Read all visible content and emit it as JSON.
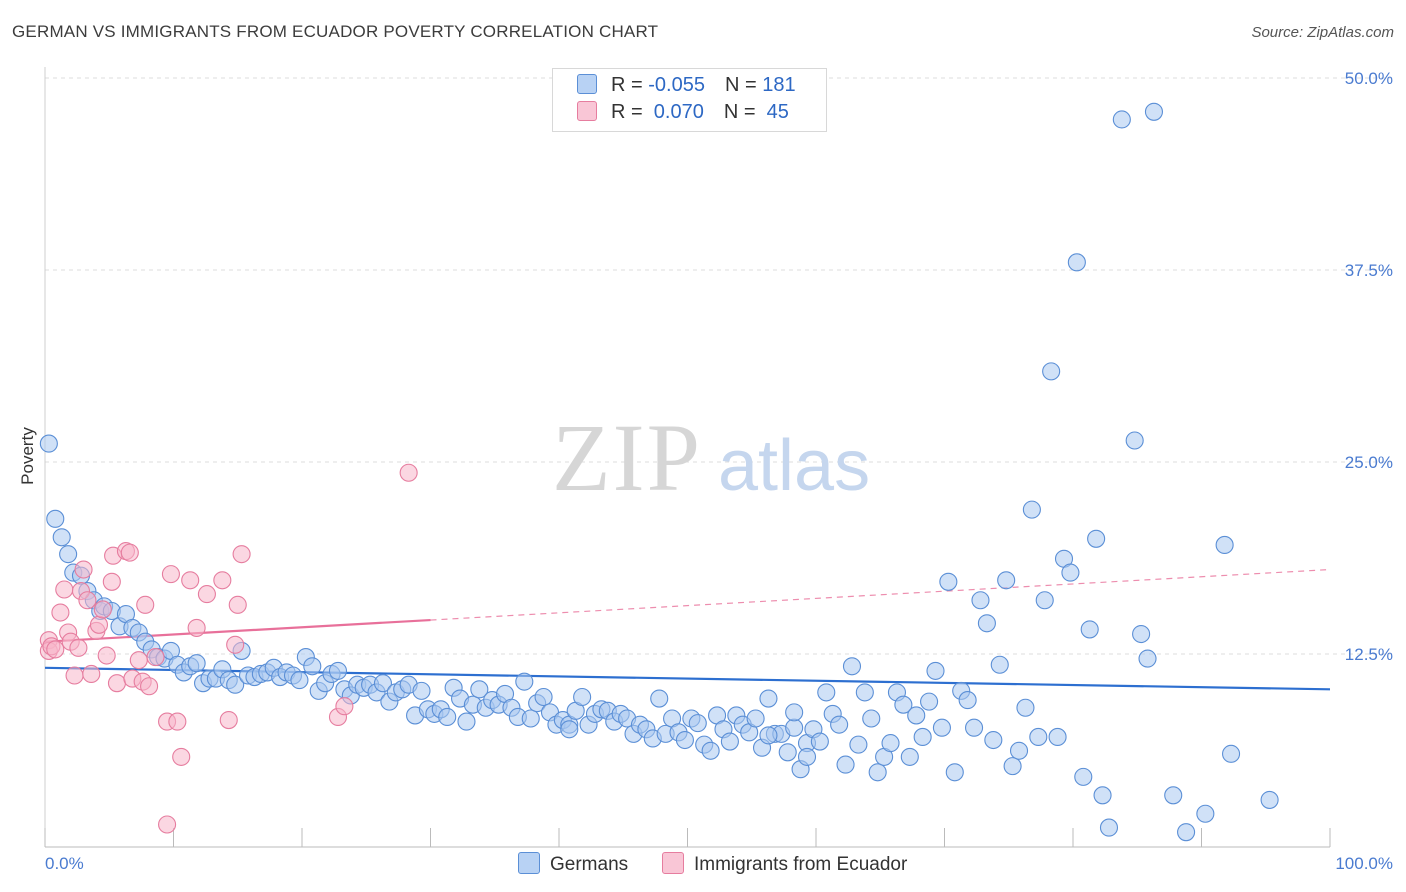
{
  "title": "GERMAN VS IMMIGRANTS FROM ECUADOR POVERTY CORRELATION CHART",
  "source": "Source: ZipAtlas.com",
  "watermark": {
    "zip": "ZIP",
    "atlas": "atlas"
  },
  "legend": {
    "rows": [
      {
        "r_label": "R = ",
        "r_value": "-0.055",
        "n_label": "N = ",
        "n_value": "181"
      },
      {
        "r_label": "R = ",
        "r_value": " 0.070",
        "n_label": "N = ",
        "n_value": " 45"
      }
    ]
  },
  "bottom_legend": {
    "germans": "Germans",
    "ecuador": "Immigrants from Ecuador"
  },
  "colors": {
    "german_fill": "#a9c8f0",
    "german_stroke": "#5b8fd6",
    "german_line": "#2d6fd0",
    "ecuador_fill": "#f7b6ca",
    "ecuador_stroke": "#e67d9f",
    "ecuador_line": "#e8709a",
    "tick_color": "#4a7bd0",
    "grid": "#dddddd"
  },
  "chart_data": {
    "type": "scatter",
    "title": "GERMAN VS IMMIGRANTS FROM ECUADOR POVERTY CORRELATION CHART",
    "xlabel": "",
    "ylabel": "Poverty",
    "xlim": [
      0,
      100
    ],
    "ylim": [
      0,
      50
    ],
    "x_ticks": [
      "0.0%",
      "100.0%"
    ],
    "y_ticks": [
      {
        "value": 12.5,
        "label": "12.5%"
      },
      {
        "value": 25.0,
        "label": "25.0%"
      },
      {
        "value": 37.5,
        "label": "37.5%"
      },
      {
        "value": 50.0,
        "label": "50.0%"
      }
    ],
    "grid": true,
    "legend_position": "top-center",
    "series": [
      {
        "name": "Germans",
        "r": -0.055,
        "n": 181,
        "trend": {
          "x": [
            0,
            100
          ],
          "y": [
            11.6,
            10.2
          ],
          "dashed_from": null
        },
        "points": [
          [
            0.3,
            26.2
          ],
          [
            0.8,
            21.3
          ],
          [
            1.3,
            20.1
          ],
          [
            1.8,
            19.0
          ],
          [
            2.2,
            17.8
          ],
          [
            2.8,
            17.6
          ],
          [
            3.3,
            16.6
          ],
          [
            3.8,
            16.0
          ],
          [
            4.3,
            15.3
          ],
          [
            4.6,
            15.6
          ],
          [
            5.2,
            15.3
          ],
          [
            5.8,
            14.3
          ],
          [
            6.3,
            15.1
          ],
          [
            6.8,
            14.2
          ],
          [
            7.3,
            13.9
          ],
          [
            7.8,
            13.3
          ],
          [
            8.3,
            12.8
          ],
          [
            8.8,
            12.3
          ],
          [
            9.3,
            12.2
          ],
          [
            9.8,
            12.7
          ],
          [
            10.3,
            11.8
          ],
          [
            10.8,
            11.3
          ],
          [
            11.3,
            11.7
          ],
          [
            11.8,
            11.9
          ],
          [
            12.3,
            10.6
          ],
          [
            12.8,
            10.9
          ],
          [
            13.3,
            10.9
          ],
          [
            13.8,
            11.5
          ],
          [
            14.3,
            10.8
          ],
          [
            14.8,
            10.5
          ],
          [
            15.3,
            12.7
          ],
          [
            15.8,
            11.1
          ],
          [
            16.3,
            11.0
          ],
          [
            16.8,
            11.2
          ],
          [
            17.3,
            11.3
          ],
          [
            17.8,
            11.6
          ],
          [
            18.3,
            11.0
          ],
          [
            18.8,
            11.3
          ],
          [
            19.3,
            11.1
          ],
          [
            19.8,
            10.8
          ],
          [
            20.3,
            12.3
          ],
          [
            20.8,
            11.7
          ],
          [
            21.3,
            10.1
          ],
          [
            21.8,
            10.6
          ],
          [
            22.3,
            11.2
          ],
          [
            22.8,
            11.4
          ],
          [
            23.3,
            10.2
          ],
          [
            23.8,
            9.8
          ],
          [
            24.3,
            10.5
          ],
          [
            24.8,
            10.3
          ],
          [
            25.3,
            10.5
          ],
          [
            25.8,
            10.0
          ],
          [
            26.3,
            10.6
          ],
          [
            26.8,
            9.4
          ],
          [
            27.3,
            10.0
          ],
          [
            27.8,
            10.2
          ],
          [
            28.3,
            10.5
          ],
          [
            28.8,
            8.5
          ],
          [
            29.3,
            10.1
          ],
          [
            29.8,
            8.9
          ],
          [
            30.3,
            8.6
          ],
          [
            30.8,
            8.9
          ],
          [
            31.3,
            8.4
          ],
          [
            31.8,
            10.3
          ],
          [
            32.3,
            9.6
          ],
          [
            32.8,
            8.1
          ],
          [
            33.3,
            9.2
          ],
          [
            33.8,
            10.2
          ],
          [
            34.3,
            9.0
          ],
          [
            34.8,
            9.5
          ],
          [
            35.3,
            9.2
          ],
          [
            35.8,
            9.9
          ],
          [
            36.3,
            9.0
          ],
          [
            36.8,
            8.4
          ],
          [
            37.3,
            10.7
          ],
          [
            37.8,
            8.3
          ],
          [
            38.3,
            9.3
          ],
          [
            38.8,
            9.7
          ],
          [
            39.3,
            8.7
          ],
          [
            39.8,
            7.9
          ],
          [
            40.3,
            8.2
          ],
          [
            40.8,
            7.9
          ],
          [
            41.3,
            8.8
          ],
          [
            41.8,
            9.7
          ],
          [
            42.3,
            7.9
          ],
          [
            42.8,
            8.6
          ],
          [
            43.3,
            8.9
          ],
          [
            43.8,
            8.8
          ],
          [
            44.3,
            8.1
          ],
          [
            44.8,
            8.6
          ],
          [
            45.3,
            8.3
          ],
          [
            45.8,
            7.3
          ],
          [
            46.3,
            7.9
          ],
          [
            46.8,
            7.6
          ],
          [
            47.3,
            7.0
          ],
          [
            47.8,
            9.6
          ],
          [
            48.3,
            7.3
          ],
          [
            48.8,
            8.3
          ],
          [
            49.3,
            7.4
          ],
          [
            49.8,
            6.9
          ],
          [
            50.3,
            8.3
          ],
          [
            50.8,
            8.0
          ],
          [
            51.3,
            6.6
          ],
          [
            51.8,
            6.2
          ],
          [
            52.3,
            8.5
          ],
          [
            52.8,
            7.6
          ],
          [
            53.3,
            6.8
          ],
          [
            53.8,
            8.5
          ],
          [
            54.3,
            7.9
          ],
          [
            54.8,
            7.4
          ],
          [
            55.3,
            8.3
          ],
          [
            55.8,
            6.4
          ],
          [
            56.3,
            9.6
          ],
          [
            56.8,
            7.3
          ],
          [
            57.3,
            7.3
          ],
          [
            57.8,
            6.1
          ],
          [
            58.3,
            7.7
          ],
          [
            58.8,
            5.0
          ],
          [
            59.3,
            6.7
          ],
          [
            59.8,
            7.6
          ],
          [
            60.3,
            6.8
          ],
          [
            60.8,
            10.0
          ],
          [
            61.3,
            8.6
          ],
          [
            61.8,
            7.9
          ],
          [
            62.3,
            5.3
          ],
          [
            62.8,
            11.7
          ],
          [
            63.3,
            6.6
          ],
          [
            63.8,
            10.0
          ],
          [
            64.3,
            8.3
          ],
          [
            64.8,
            4.8
          ],
          [
            65.3,
            5.8
          ],
          [
            65.8,
            6.7
          ],
          [
            66.3,
            10.0
          ],
          [
            66.8,
            9.2
          ],
          [
            67.3,
            5.8
          ],
          [
            67.8,
            8.5
          ],
          [
            68.3,
            7.1
          ],
          [
            68.8,
            9.4
          ],
          [
            69.3,
            11.4
          ],
          [
            69.8,
            7.7
          ],
          [
            70.3,
            17.2
          ],
          [
            70.8,
            4.8
          ],
          [
            71.3,
            10.1
          ],
          [
            71.8,
            9.5
          ],
          [
            72.3,
            7.7
          ],
          [
            72.8,
            16.0
          ],
          [
            73.3,
            14.5
          ],
          [
            73.8,
            6.9
          ],
          [
            74.3,
            11.8
          ],
          [
            74.8,
            17.3
          ],
          [
            75.3,
            5.2
          ],
          [
            75.8,
            6.2
          ],
          [
            76.3,
            9.0
          ],
          [
            76.8,
            21.9
          ],
          [
            77.3,
            7.1
          ],
          [
            77.8,
            16.0
          ],
          [
            78.3,
            30.9
          ],
          [
            78.8,
            7.1
          ],
          [
            79.3,
            18.7
          ],
          [
            79.8,
            17.8
          ],
          [
            80.3,
            38.0
          ],
          [
            80.8,
            4.5
          ],
          [
            81.3,
            14.1
          ],
          [
            81.8,
            20.0
          ],
          [
            82.3,
            3.3
          ],
          [
            82.8,
            1.2
          ],
          [
            83.8,
            47.3
          ],
          [
            84.8,
            26.4
          ],
          [
            85.3,
            13.8
          ],
          [
            85.8,
            12.2
          ],
          [
            86.3,
            47.8
          ],
          [
            87.8,
            3.3
          ],
          [
            88.8,
            0.9
          ],
          [
            90.3,
            2.1
          ],
          [
            91.8,
            19.6
          ],
          [
            92.3,
            6.0
          ],
          [
            95.3,
            3.0
          ],
          [
            40.8,
            7.6
          ],
          [
            56.3,
            7.2
          ],
          [
            59.3,
            5.8
          ],
          [
            58.3,
            8.7
          ]
        ]
      },
      {
        "name": "Immigrants from Ecuador",
        "r": 0.07,
        "n": 45,
        "trend": {
          "x": [
            0,
            100
          ],
          "y": [
            13.3,
            18.0
          ],
          "dashed_from": 30
        },
        "points": [
          [
            0.3,
            13.4
          ],
          [
            0.3,
            12.7
          ],
          [
            0.5,
            13.0
          ],
          [
            0.8,
            12.8
          ],
          [
            1.2,
            15.2
          ],
          [
            1.5,
            16.7
          ],
          [
            1.8,
            13.9
          ],
          [
            2.0,
            13.3
          ],
          [
            2.3,
            11.1
          ],
          [
            2.6,
            12.9
          ],
          [
            2.8,
            16.6
          ],
          [
            3.0,
            18.0
          ],
          [
            3.3,
            16.0
          ],
          [
            3.6,
            11.2
          ],
          [
            4.0,
            14.0
          ],
          [
            4.2,
            14.4
          ],
          [
            4.5,
            15.4
          ],
          [
            4.8,
            12.4
          ],
          [
            5.2,
            17.2
          ],
          [
            5.3,
            18.9
          ],
          [
            5.6,
            10.6
          ],
          [
            6.3,
            19.2
          ],
          [
            6.6,
            19.1
          ],
          [
            6.8,
            10.9
          ],
          [
            7.3,
            12.1
          ],
          [
            7.6,
            10.7
          ],
          [
            7.8,
            15.7
          ],
          [
            8.1,
            10.4
          ],
          [
            8.6,
            12.3
          ],
          [
            9.5,
            8.1
          ],
          [
            9.8,
            17.7
          ],
          [
            10.3,
            8.1
          ],
          [
            10.6,
            5.8
          ],
          [
            11.3,
            17.3
          ],
          [
            11.8,
            14.2
          ],
          [
            12.6,
            16.4
          ],
          [
            13.8,
            17.3
          ],
          [
            14.3,
            8.2
          ],
          [
            14.8,
            13.1
          ],
          [
            15.0,
            15.7
          ],
          [
            15.3,
            19.0
          ],
          [
            22.8,
            8.4
          ],
          [
            23.3,
            9.1
          ],
          [
            28.3,
            24.3
          ],
          [
            9.5,
            1.4
          ]
        ]
      }
    ]
  }
}
